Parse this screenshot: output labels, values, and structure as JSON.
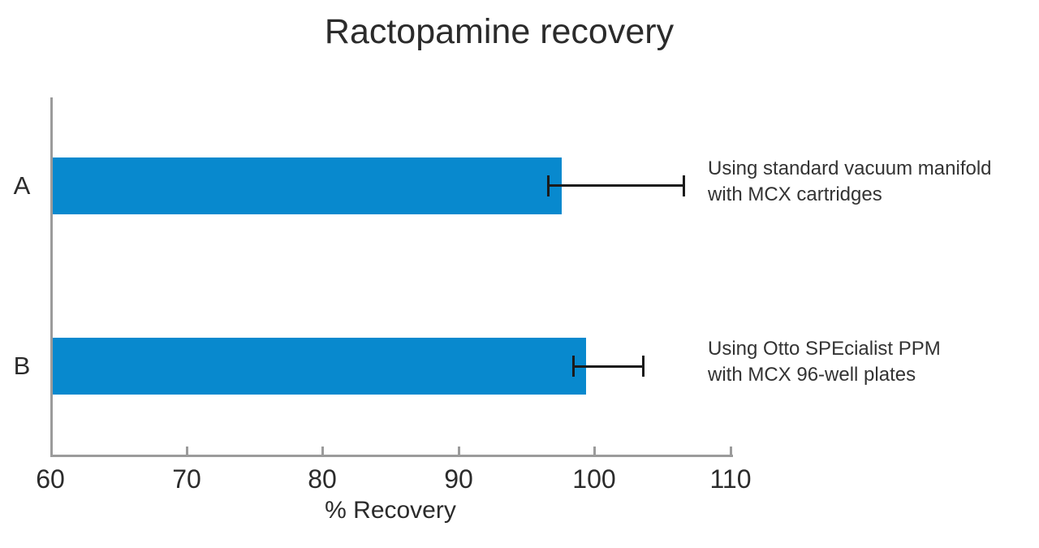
{
  "page": {
    "background": "#ffffff"
  },
  "chart_data": {
    "type": "bar",
    "orientation": "horizontal",
    "title": "Ractopamine recovery",
    "xlabel": "% Recovery",
    "xlim": [
      60,
      110
    ],
    "xticks": [
      60,
      70,
      80,
      90,
      100,
      110
    ],
    "grid": false,
    "legend": false,
    "categories": [
      "A",
      "B"
    ],
    "series": [
      {
        "name": "% Recovery",
        "values": [
          97.6,
          99.4
        ]
      }
    ],
    "error_bars": [
      {
        "low": 96.6,
        "high": 106.6
      },
      {
        "low": 98.4,
        "high": 103.6
      }
    ],
    "annotations": [
      {
        "lines": [
          "Using standard vacuum manifold",
          "with MCX cartridges"
        ]
      },
      {
        "lines": [
          "Using Otto SPEcialist PPM",
          "with MCX 96-well plates"
        ]
      }
    ],
    "colors": {
      "bar": "#0889CE",
      "axis": "#9B9B9B",
      "error_bar": "#1B1B1B",
      "text": "#2B2B2B",
      "annotation_text": "#333333"
    }
  }
}
